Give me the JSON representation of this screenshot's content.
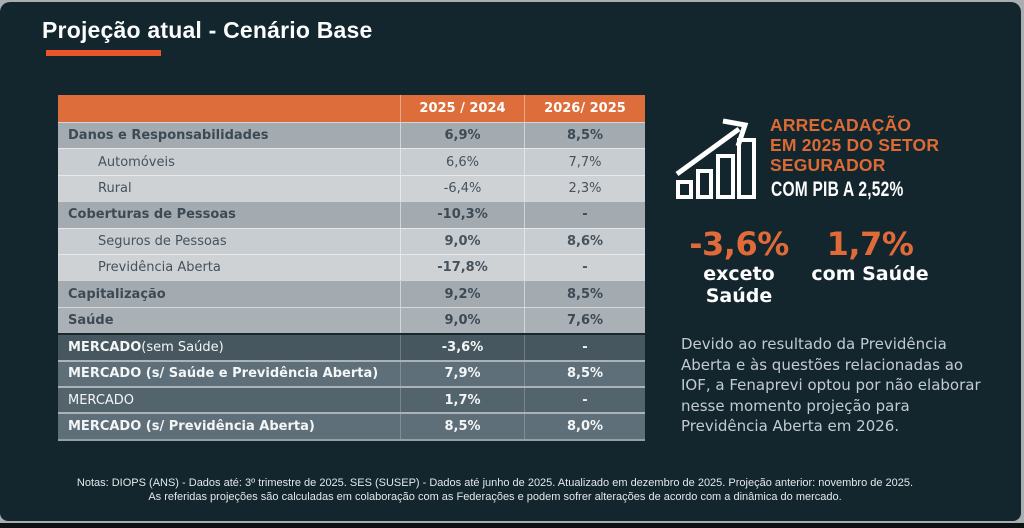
{
  "window": {
    "frame_color": "#a9aeb1",
    "chrome_bottom_color": "#0e1113"
  },
  "slide": {
    "background": "#13262e",
    "title": "Projeção atual - Cenário Base",
    "underline_color": "#e8562a"
  },
  "table": {
    "header_bg": "#dd6e3b",
    "columns": [
      "2025 / 2024",
      "2026/ 2025"
    ],
    "rows": [
      {
        "label": "Danos e Responsabilidades",
        "suffix": "",
        "v1": "6,9%",
        "v2": "8,5%",
        "variant": "category",
        "indent": false,
        "bold_label": true,
        "bold_values": true
      },
      {
        "label": "Automóveis",
        "suffix": "",
        "v1": "6,6%",
        "v2": "7,7%",
        "variant": "sub-a",
        "indent": true,
        "bold_label": false,
        "bold_values": false
      },
      {
        "label": "Rural",
        "suffix": "",
        "v1": "-6,4%",
        "v2": "2,3%",
        "variant": "sub-b",
        "indent": true,
        "bold_label": false,
        "bold_values": false
      },
      {
        "label": "Coberturas de Pessoas",
        "suffix": "",
        "v1": "-10,3%",
        "v2": "-",
        "variant": "category",
        "indent": false,
        "bold_label": true,
        "bold_values": true
      },
      {
        "label": "Seguros de Pessoas",
        "suffix": "",
        "v1": "9,0%",
        "v2": "8,6%",
        "variant": "sub-a",
        "indent": true,
        "bold_label": false,
        "bold_values": true
      },
      {
        "label": "Previdência Aberta",
        "suffix": "",
        "v1": "-17,8%",
        "v2": "-",
        "variant": "sub-b",
        "indent": true,
        "bold_label": false,
        "bold_values": true
      },
      {
        "label": "Capitalização",
        "suffix": "",
        "v1": "9,2%",
        "v2": "8,5%",
        "variant": "category",
        "indent": false,
        "bold_label": true,
        "bold_values": true
      },
      {
        "label": "Saúde",
        "suffix": "",
        "v1": "9,0%",
        "v2": "7,6%",
        "variant": "category-light",
        "indent": false,
        "bold_label": true,
        "bold_values": true
      },
      {
        "label": "MERCADO",
        "suffix": " (sem Saúde)",
        "v1": "-3,6%",
        "v2": "-",
        "variant": "market-dark",
        "indent": false,
        "bold_label": true,
        "bold_values": true
      },
      {
        "label": "MERCADO (s/ Saúde e Previdência Aberta)",
        "suffix": "",
        "v1": "7,9%",
        "v2": "8,5%",
        "variant": "market-light",
        "indent": false,
        "bold_label": true,
        "bold_values": true
      },
      {
        "label": "MERCADO",
        "suffix": "",
        "v1": "1,7%",
        "v2": "-",
        "variant": "market-mid",
        "indent": false,
        "bold_label": false,
        "bold_values": true
      },
      {
        "label": "MERCADO (s/ Previdência Aberta)",
        "suffix": "",
        "v1": "8,5%",
        "v2": "8,0%",
        "variant": "market-light",
        "indent": false,
        "bold_label": true,
        "bold_values": true
      }
    ]
  },
  "highlight": {
    "icon": "growth-arrow-bar-chart-icon",
    "heading_lines": [
      "ARRECADAÇÃO",
      "EM 2025 DO SETOR",
      "SEGURADOR"
    ],
    "heading_color": "#dc6a35",
    "subheading": "COM PIB A 2,52%",
    "stats": [
      {
        "value": "-3,6%",
        "label": "exceto Saúde"
      },
      {
        "value": "1,7%",
        "label": "com Saúde"
      }
    ],
    "stat_color": "#e06a38"
  },
  "commentary": "Devido ao resultado da Previdência Aberta e às questões relacionadas ao IOF, a Fenaprevi optou por não elaborar nesse momento projeção para Previdência Aberta em 2026.",
  "footnotes": [
    "Notas: DIOPS (ANS) - Dados até: 3º trimestre de 2025. SES (SUSEP) - Dados até junho de 2025. Atualizado em dezembro de 2025. Projeção anterior: novembro de 2025.",
    "As referidas projeções são calculadas em colaboração com as Federações e podem sofrer alterações de acordo com a dinâmica do mercado."
  ],
  "chart_data": {
    "type": "table",
    "title": "Projeção atual - Cenário Base",
    "columns": [
      "2025 / 2024",
      "2026/ 2025"
    ],
    "row_labels": [
      "Danos e Responsabilidades",
      "Automóveis",
      "Rural",
      "Coberturas de Pessoas",
      "Seguros de Pessoas",
      "Previdência Aberta",
      "Capitalização",
      "Saúde",
      "MERCADO (sem Saúde)",
      "MERCADO (s/ Saúde e Previdência Aberta)",
      "MERCADO",
      "MERCADO (s/ Previdência Aberta)"
    ],
    "series": [
      {
        "name": "2025 / 2024",
        "values": [
          6.9,
          6.6,
          -6.4,
          -10.3,
          9.0,
          -17.8,
          9.2,
          9.0,
          -3.6,
          7.9,
          1.7,
          8.5
        ]
      },
      {
        "name": "2026/ 2025",
        "values": [
          8.5,
          7.7,
          2.3,
          null,
          8.6,
          null,
          8.5,
          7.6,
          null,
          8.5,
          null,
          8.0
        ]
      }
    ],
    "unit": "%"
  }
}
